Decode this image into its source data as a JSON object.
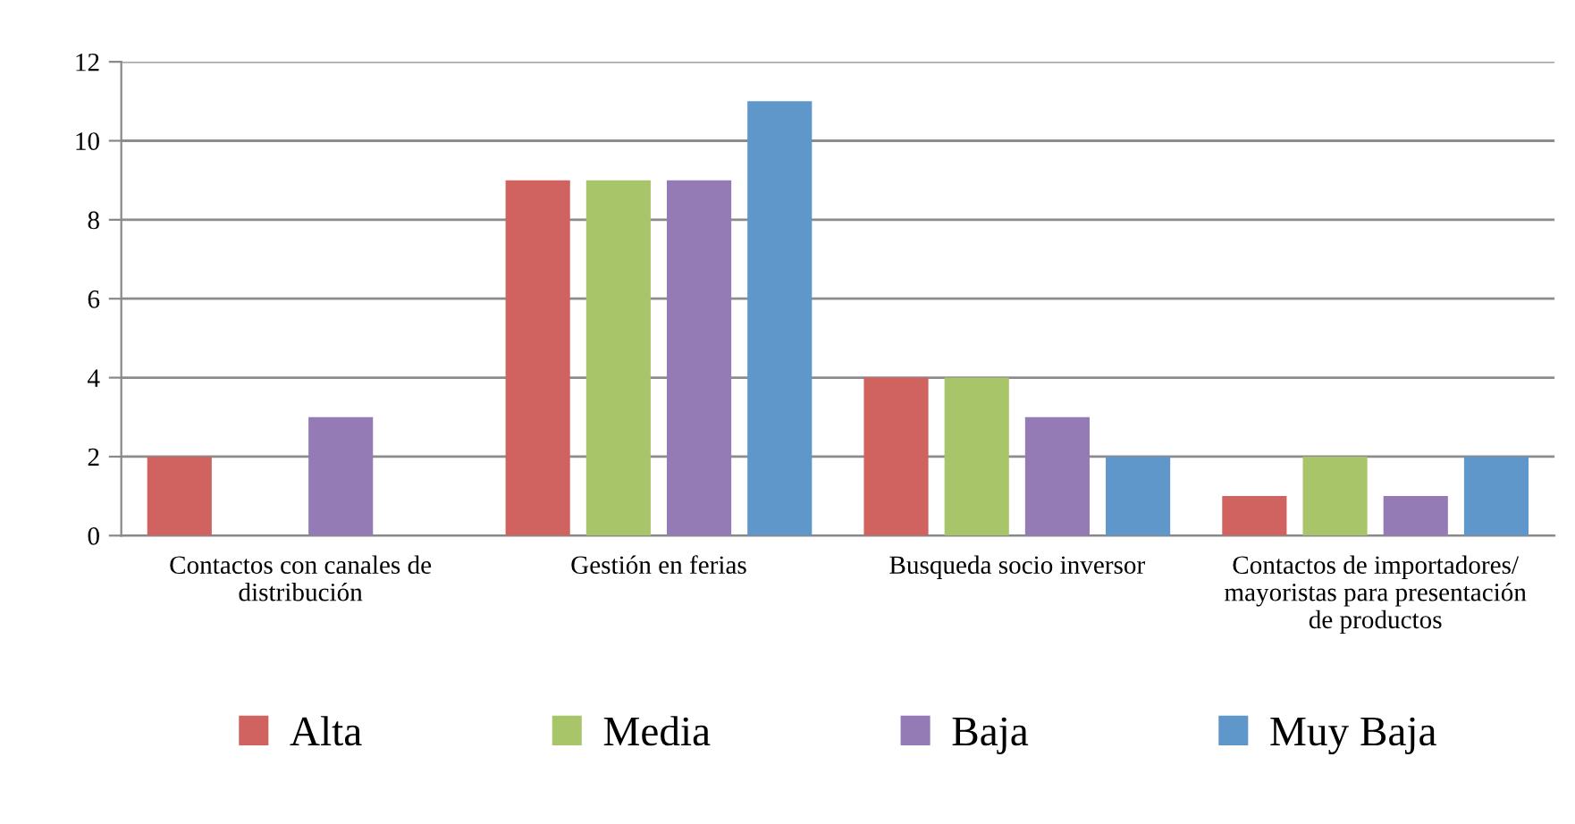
{
  "chart_data": {
    "type": "bar",
    "categories": [
      "Contactos con canales de\ndistribución",
      "Gestión en ferias",
      "Busqueda socio inversor",
      "Contactos de importadores/\nmayoristas para presentación\nde productos"
    ],
    "series": [
      {
        "name": "Alta",
        "color": "#d0635f",
        "values": [
          2,
          9,
          4,
          1
        ]
      },
      {
        "name": "Media",
        "color": "#a9c56a",
        "values": [
          0,
          9,
          4,
          2
        ]
      },
      {
        "name": "Baja",
        "color": "#957bb5",
        "values": [
          3,
          9,
          3,
          1
        ]
      },
      {
        "name": "Muy Baja",
        "color": "#5f97cb",
        "values": [
          0,
          11,
          2,
          2
        ]
      }
    ],
    "ylim": [
      0,
      12
    ],
    "yticks": [
      0,
      2,
      4,
      6,
      8,
      10,
      12
    ],
    "grid": "y",
    "legend": "bottom"
  }
}
